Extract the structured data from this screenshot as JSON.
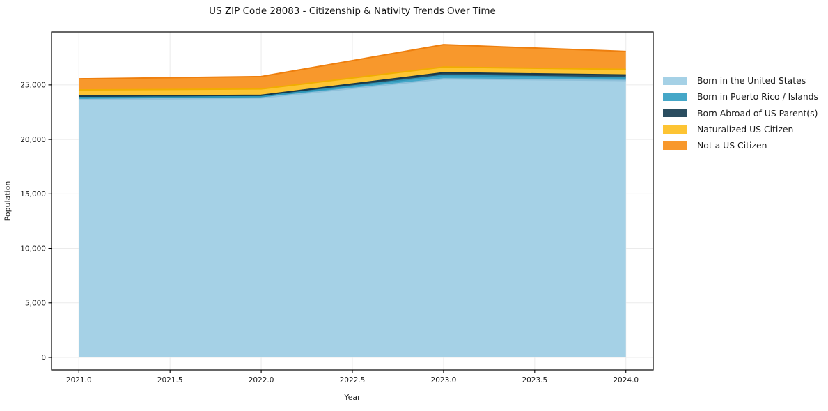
{
  "figure": {
    "background": "#ffffff",
    "text_color": "#1a1a1a"
  },
  "chart_data": {
    "type": "area",
    "stacked": true,
    "title": "US ZIP Code 28083 - Citizenship & Nativity Trends Over Time",
    "xlabel": "Year",
    "ylabel": "Population",
    "x": [
      2021,
      2022,
      2023,
      2024
    ],
    "series": [
      {
        "name": "Born in the United States",
        "values": [
          23650,
          23800,
          25550,
          25400
        ],
        "fill": "#a5d1e6",
        "edge": "#8fc0da"
      },
      {
        "name": "Born in Puerto Rico / Islands",
        "values": [
          190,
          130,
          320,
          250
        ],
        "fill": "#45a7c8",
        "edge": "#2f96b8"
      },
      {
        "name": "Born Abroad of US Parent(s)",
        "values": [
          130,
          120,
          250,
          260
        ],
        "fill": "#2a4d60",
        "edge": "#18394a"
      },
      {
        "name": "Naturalized US Citizen",
        "values": [
          570,
          580,
          520,
          510
        ],
        "fill": "#fdc433",
        "edge": "#f0ad00"
      },
      {
        "name": "Not a US Citizen",
        "values": [
          1020,
          1140,
          2050,
          1650
        ],
        "fill": "#f8982c",
        "edge": "#ee7f0e"
      }
    ],
    "x_ticks": [
      {
        "v": 2021.0,
        "label": "2021.0"
      },
      {
        "v": 2021.5,
        "label": "2021.5"
      },
      {
        "v": 2022.0,
        "label": "2022.0"
      },
      {
        "v": 2022.5,
        "label": "2022.5"
      },
      {
        "v": 2023.0,
        "label": "2023.0"
      },
      {
        "v": 2023.5,
        "label": "2023.5"
      },
      {
        "v": 2024.0,
        "label": "2024.0"
      }
    ],
    "y_ticks": [
      {
        "v": 0,
        "label": "0"
      },
      {
        "v": 5000,
        "label": "5,000"
      },
      {
        "v": 10000,
        "label": "10,000"
      },
      {
        "v": 15000,
        "label": "15,000"
      },
      {
        "v": 20000,
        "label": "20,000"
      },
      {
        "v": 25000,
        "label": "25,000"
      }
    ],
    "xlim": [
      2020.85,
      2024.15
    ],
    "ylim": [
      -1150,
      29850
    ],
    "grid": true,
    "grid_color": "#ebebeb",
    "axis_color": "#000000",
    "legend_position": "right"
  }
}
